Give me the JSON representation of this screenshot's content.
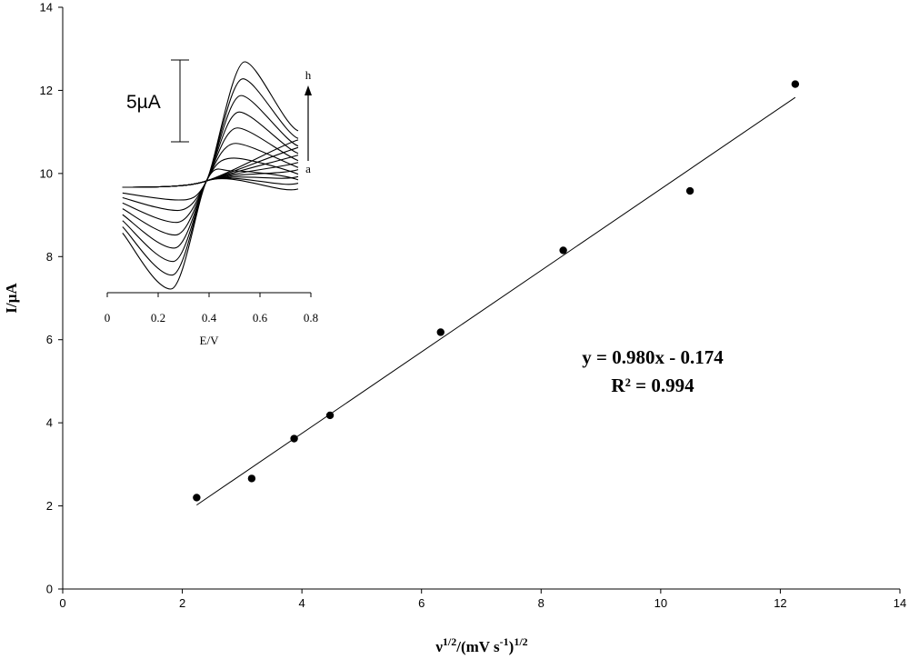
{
  "chart_data": [
    {
      "type": "scatter",
      "xlabel": "ν1/2/(mV s-1)1/2",
      "xlabel_parts": {
        "main": "ν",
        "sup1": "1/2",
        "mid": "/(mV s",
        "sup2": "-1",
        "end": ")",
        "sup3": "1/2"
      },
      "ylabel": "I/µA",
      "xlim": [
        0,
        14
      ],
      "ylim": [
        0,
        14
      ],
      "xticks": [
        0,
        2,
        4,
        6,
        8,
        10,
        12,
        14
      ],
      "yticks": [
        0,
        2,
        4,
        6,
        8,
        10,
        12,
        14
      ],
      "grid": false,
      "series": [
        {
          "marker": "filled-circle",
          "x": [
            2.24,
            3.16,
            3.87,
            4.47,
            6.32,
            8.37,
            10.49,
            12.25
          ],
          "y": [
            2.2,
            2.66,
            3.62,
            4.18,
            6.18,
            8.15,
            9.58,
            12.15
          ]
        }
      ],
      "trendline": {
        "slope": 0.98,
        "intercept": -0.174,
        "x_range": [
          2.24,
          12.25
        ]
      },
      "annotations": {
        "equation": "y = 0.980x - 0.174",
        "r2": "R² = 0.994"
      }
    },
    {
      "type": "line",
      "role": "inset",
      "xlabel": "E/V",
      "xlim": [
        0,
        0.8
      ],
      "xticks": [
        "0",
        "0.2",
        "0.4",
        "0.6",
        "0.8"
      ],
      "scale_bar_label": "5µA",
      "curve_labels": {
        "first": "a",
        "last": "h"
      },
      "curves": [
        "a",
        "b",
        "c",
        "d",
        "e",
        "f",
        "g",
        "h"
      ]
    }
  ]
}
